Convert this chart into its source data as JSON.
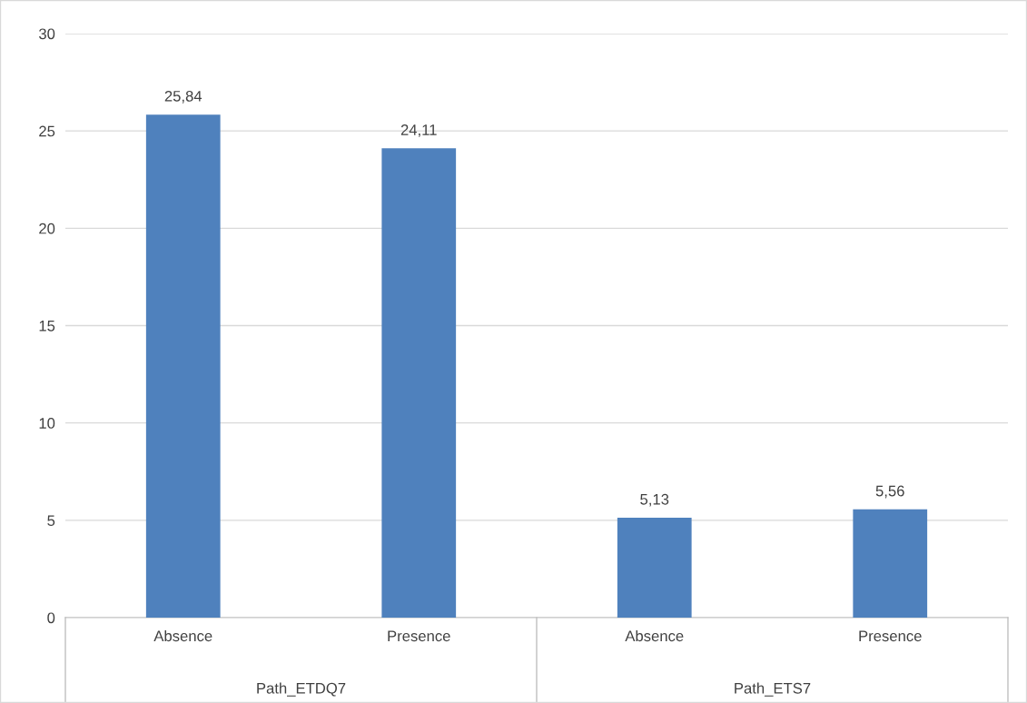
{
  "chart_data": {
    "type": "bar",
    "categories": [
      "Absence",
      "Presence",
      "Absence",
      "Presence"
    ],
    "values": [
      25.84,
      24.11,
      5.13,
      5.56
    ],
    "value_labels": [
      "25,84",
      "24,11",
      "5,13",
      "5,56"
    ],
    "color": "#4f81bd",
    "ylim": [
      0,
      30
    ],
    "yticks": [
      0,
      5,
      10,
      15,
      20,
      25,
      30
    ],
    "grid": "y",
    "legend": false,
    "annotations": [
      "Path_ETDQ7",
      "Path_ETS7"
    ]
  }
}
